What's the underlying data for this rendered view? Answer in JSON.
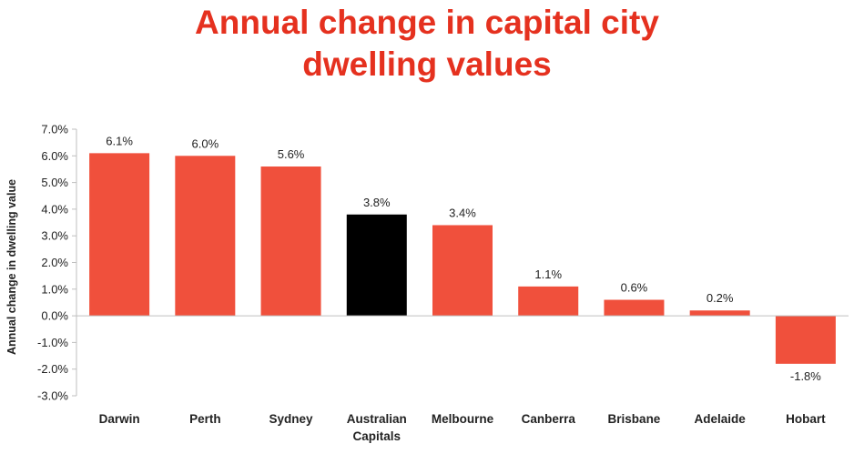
{
  "chart_data": {
    "type": "bar",
    "title_lines": [
      "Annual change in capital city",
      "dwelling values"
    ],
    "ylabel": "Annual change in dwelling value",
    "xlabel": "",
    "categories": [
      "Darwin",
      "Perth",
      "Sydney",
      "Australian Capitals",
      "Melbourne",
      "Canberra",
      "Brisbane",
      "Adelaide",
      "Hobart"
    ],
    "category_lines": [
      [
        "Darwin"
      ],
      [
        "Perth"
      ],
      [
        "Sydney"
      ],
      [
        "Australian",
        "Capitals"
      ],
      [
        "Melbourne"
      ],
      [
        "Canberra"
      ],
      [
        "Brisbane"
      ],
      [
        "Adelaide"
      ],
      [
        "Hobart"
      ]
    ],
    "values": [
      6.1,
      6.0,
      5.6,
      3.8,
      3.4,
      1.1,
      0.6,
      0.2,
      -1.8
    ],
    "data_labels": [
      "6.1%",
      "6.0%",
      "5.6%",
      "3.8%",
      "3.4%",
      "1.1%",
      "0.6%",
      "0.2%",
      "-1.8%"
    ],
    "ylim": [
      -3.0,
      7.0
    ],
    "yticks": [
      7.0,
      6.0,
      5.0,
      4.0,
      3.0,
      2.0,
      1.0,
      0.0,
      -1.0,
      -2.0,
      -3.0
    ],
    "ytick_labels": [
      "7.0%",
      "6.0%",
      "5.0%",
      "4.0%",
      "3.0%",
      "2.0%",
      "1.0%",
      "0.0%",
      "-1.0%",
      "-2.0%",
      "-3.0%"
    ],
    "grid": false,
    "legend": "none",
    "colors": {
      "bar": "#f0503c",
      "highlight_bar": "#000000",
      "highlight_category": "Australian Capitals",
      "title": "#e5311f",
      "axis": "#bfbfbf",
      "text": "#222222"
    }
  }
}
